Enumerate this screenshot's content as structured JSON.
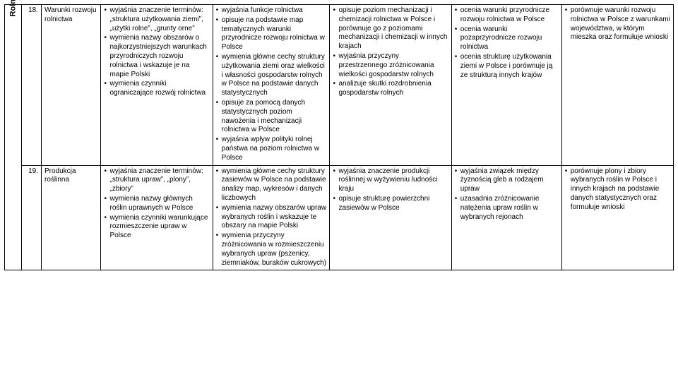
{
  "section_label": "Rolnictwo i przemysł",
  "rows": [
    {
      "num": "18.",
      "topic": "Warunki rozwoju rolnictwa",
      "c1": [
        "wyjaśnia znaczenie terminów: „struktura użytkowania ziemi”, „użytki rolne”, „grunty orne”",
        "wymienia nazwy obszarów o najkorzystniejszych warunkach przyrodniczych rozwoju rolnictwa i wskazuje je na mapie Polski",
        "wymienia czynniki ograniczające rozwój rolnictwa"
      ],
      "c2": [
        "wyjaśnia funkcje rolnictwa",
        "opisuje na podstawie map tematycznych warunki przyrodnicze rozwoju rolnictwa w Polsce",
        "wymienia główne cechy struktury użytkowania ziemi oraz wielkości i własności gospodarstw rolnych w Polsce na podstawie danych statystycznych",
        "opisuje za pomocą danych statystycznych poziom nawożenia i mechanizacji rolnictwa w Polsce",
        "wyjaśnia wpływ polityki rolnej państwa na poziom rolnictwa w Polsce"
      ],
      "c3": [
        "opisuje poziom mechanizacji i chemizacji rolnictwa w Polsce i porównuje go z poziomami mechanizacji i chemizacji w innych krajach",
        "wyjaśnia przyczyny przestrzennego zróżnicowania wielkości gospodarstw rolnych",
        "analizuje skutki rozdrobnienia gospodarstw rolnych"
      ],
      "c4": [
        "ocenia warunki przyrodnicze rozwoju rolnictwa w Polsce",
        "ocenia warunki pozaprzyrodnicze rozwoju rolnictwa",
        "ocenia strukturę użytkowania ziemi w Polsce i porównuje ją ze strukturą innych krajów"
      ],
      "c5": [
        "porównuje warunki rozwoju rolnictwa w Polsce z warunkami województwa, w którym mieszka oraz formułuje wnioski"
      ]
    },
    {
      "num": "19.",
      "topic": "Produkcja roślinna",
      "c1": [
        "wyjaśnia znaczenie terminów: „struktura upraw”, „plony”, „zbiory”",
        "wymienia nazwy głównych roślin uprawnych w Polsce",
        "wymienia czynniki warunkujące rozmieszczenie upraw w Polsce"
      ],
      "c2": [
        "wymienia główne cechy struktury zasiewów w Polsce na podstawie analizy map, wykresów i danych liczbowych",
        "wymienia nazwy obszarów upraw wybranych roślin i wskazuje te obszary na mapie Polski",
        "wymienia przyczyny zróżnicowania w rozmieszczeniu wybranych upraw (pszenicy, ziemniaków, buraków cukrowych)"
      ],
      "c3": [
        "wyjaśnia znaczenie produkcji roślinnej w wyżywieniu ludności kraju",
        "opisuje strukturę powierzchni zasiewów w Polsce"
      ],
      "c4": [
        "wyjaśnia związek między żyznością gleb a rodzajem upraw",
        "uzasadnia zróżnicowanie natężenia upraw roślin w wybranych rejonach"
      ],
      "c5": [
        "porównuje plony i zbiory wybranych roślin w Polsce i innych krajach na podstawie danych statystycznych oraz formułuje wnioski"
      ]
    }
  ]
}
